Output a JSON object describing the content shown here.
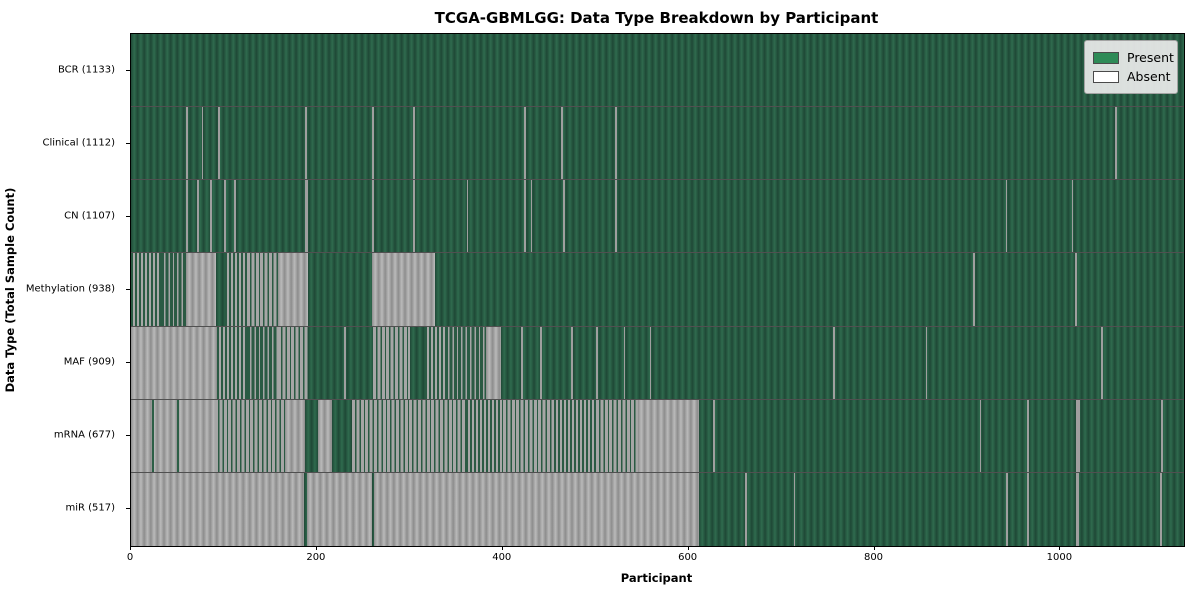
{
  "chart_data": {
    "type": "heatmap",
    "title": "TCGA-GBMLGG: Data Type Breakdown by Participant",
    "xlabel": "Participant",
    "ylabel": "Data Type (Total Sample Count)",
    "x_range": [
      0,
      1133
    ],
    "x_ticks": [
      0,
      200,
      400,
      600,
      800,
      1000
    ],
    "grid": false,
    "legend_position": "upper right",
    "legend": [
      {
        "label": "Present",
        "color": "#2e8b57"
      },
      {
        "label": "Absent",
        "color": "#ffffff"
      }
    ],
    "cell_states": [
      "present",
      "absent",
      "mixed",
      "mixed_present",
      "mixed_absent"
    ],
    "rows": [
      {
        "key": "bcr",
        "label": "BCR (1133)",
        "total": 1133,
        "segments": [
          [
            0,
            1133,
            "present"
          ]
        ],
        "absent_lines": [],
        "present_lines": []
      },
      {
        "key": "clinical",
        "label": "Clinical (1112)",
        "total": 1112,
        "segments": [
          [
            0,
            1133,
            "present"
          ]
        ],
        "absent_lines": [
          [
            59,
            2
          ],
          [
            76,
            2
          ],
          [
            94,
            2
          ],
          [
            187,
            2
          ],
          [
            259,
            2
          ],
          [
            303,
            3
          ],
          [
            423,
            2
          ],
          [
            463,
            2
          ],
          [
            521,
            2
          ],
          [
            1059,
            2
          ]
        ],
        "present_lines": []
      },
      {
        "key": "cn",
        "label": "CN (1107)",
        "total": 1107,
        "segments": [
          [
            0,
            1133,
            "present"
          ]
        ],
        "absent_lines": [
          [
            59,
            2
          ],
          [
            71,
            2
          ],
          [
            85,
            2
          ],
          [
            100,
            2
          ],
          [
            111,
            2
          ],
          [
            187,
            3
          ],
          [
            259,
            2
          ],
          [
            303,
            3
          ],
          [
            361,
            2
          ],
          [
            423,
            2
          ],
          [
            430,
            2
          ],
          [
            465,
            2
          ],
          [
            521,
            2
          ],
          [
            941,
            2
          ],
          [
            1012,
            2
          ]
        ],
        "present_lines": []
      },
      {
        "key": "methylation",
        "label": "Methylation (938)",
        "total": 938,
        "segments": [
          [
            0,
            32,
            "mixed"
          ],
          [
            32,
            59,
            "mixed_present"
          ],
          [
            59,
            91,
            "absent"
          ],
          [
            91,
            101,
            "present"
          ],
          [
            101,
            125,
            "mixed"
          ],
          [
            125,
            158,
            "mixed_absent"
          ],
          [
            158,
            190,
            "absent"
          ],
          [
            190,
            259,
            "present"
          ],
          [
            259,
            327,
            "absent"
          ],
          [
            327,
            1133,
            "present"
          ]
        ],
        "absent_lines": [
          [
            906,
            2
          ],
          [
            1016,
            2
          ]
        ],
        "present_lines": []
      },
      {
        "key": "maf",
        "label": "MAF (909)",
        "total": 909,
        "segments": [
          [
            0,
            92,
            "absent"
          ],
          [
            92,
            125,
            "mixed"
          ],
          [
            125,
            158,
            "mixed_present"
          ],
          [
            158,
            190,
            "mixed_absent"
          ],
          [
            190,
            260,
            "present"
          ],
          [
            260,
            300,
            "mixed_absent"
          ],
          [
            300,
            316,
            "present"
          ],
          [
            316,
            338,
            "mixed"
          ],
          [
            338,
            382,
            "mixed_present"
          ],
          [
            382,
            398,
            "absent"
          ],
          [
            398,
            1133,
            "present"
          ]
        ],
        "absent_lines": [
          [
            229,
            2
          ],
          [
            420,
            2
          ],
          [
            440,
            2
          ],
          [
            473,
            3
          ],
          [
            500,
            2
          ],
          [
            530,
            2
          ],
          [
            558,
            2
          ],
          [
            755,
            2
          ],
          [
            855,
            2
          ],
          [
            1044,
            2
          ]
        ],
        "present_lines": []
      },
      {
        "key": "mrna",
        "label": "mRNA (677)",
        "total": 677,
        "segments": [
          [
            0,
            90,
            "absent"
          ],
          [
            90,
            166,
            "mixed_absent"
          ],
          [
            166,
            187,
            "absent"
          ],
          [
            187,
            201,
            "present"
          ],
          [
            201,
            216,
            "absent"
          ],
          [
            216,
            238,
            "present"
          ],
          [
            238,
            360,
            "mixed_absent"
          ],
          [
            360,
            400,
            "mixed"
          ],
          [
            400,
            455,
            "mixed_absent"
          ],
          [
            455,
            500,
            "mixed"
          ],
          [
            500,
            545,
            "mixed_absent"
          ],
          [
            545,
            611,
            "absent"
          ],
          [
            611,
            1133,
            "present"
          ]
        ],
        "absent_lines": [
          [
            626,
            2
          ],
          [
            913,
            2
          ],
          [
            964,
            2
          ],
          [
            1017,
            4
          ],
          [
            1108,
            2
          ]
        ],
        "present_lines": [
          [
            23,
            2
          ],
          [
            50,
            2
          ]
        ]
      },
      {
        "key": "mir",
        "label": "miR (517)",
        "total": 517,
        "segments": [
          [
            0,
            186,
            "absent"
          ],
          [
            186,
            189,
            "present"
          ],
          [
            189,
            259,
            "absent"
          ],
          [
            259,
            261,
            "present"
          ],
          [
            261,
            611,
            "absent"
          ],
          [
            611,
            1133,
            "present"
          ]
        ],
        "absent_lines": [
          [
            661,
            2
          ],
          [
            713,
            2
          ],
          [
            942,
            2
          ],
          [
            964,
            2
          ],
          [
            1017,
            3
          ],
          [
            1107,
            2
          ]
        ],
        "present_lines": []
      }
    ]
  }
}
